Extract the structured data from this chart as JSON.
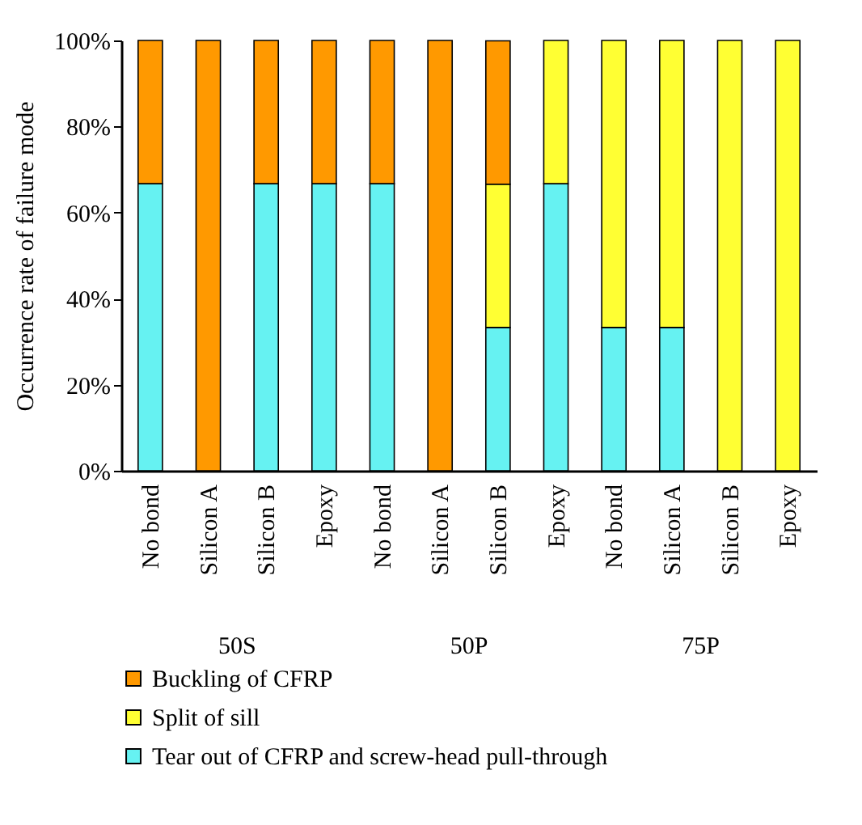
{
  "chart_data": {
    "type": "bar",
    "stacked": true,
    "ylabel": "Occurrence rate of failure mode",
    "categories": [
      "No bond",
      "Silicon A",
      "Silicon B",
      "Epoxy",
      "No bond",
      "Silicon A",
      "Silicon B",
      "Epoxy",
      "No bond",
      "Silicon A",
      "Silicon B",
      "Epoxy"
    ],
    "series": [
      {
        "name": "Tear out of CFRP and screw-head pull-through",
        "color": "#66f2f2",
        "values": [
          66.7,
          0,
          66.7,
          66.7,
          66.7,
          0,
          33.3,
          66.7,
          33.3,
          33.3,
          0,
          0
        ]
      },
      {
        "name": "Split of sill",
        "color": "#ffff33",
        "values": [
          0,
          0,
          0,
          0,
          0,
          0,
          33.3,
          33.3,
          66.7,
          66.7,
          100,
          100
        ]
      },
      {
        "name": "Buckling of CFRP",
        "color": "#ff9900",
        "values": [
          33.3,
          100,
          33.3,
          33.3,
          33.3,
          100,
          33.3,
          0,
          0,
          0,
          0,
          0
        ]
      }
    ],
    "ylim": [
      0,
      100
    ],
    "yticks": [
      {
        "value": 0,
        "label": "0%"
      },
      {
        "value": 20,
        "label": "20%"
      },
      {
        "value": 40,
        "label": "40%"
      },
      {
        "value": 60,
        "label": "60%"
      },
      {
        "value": 80,
        "label": "80%"
      },
      {
        "value": 100,
        "label": "100%"
      }
    ],
    "annotations": [
      "50S",
      "50P",
      "75P"
    ],
    "legend": "bottom",
    "grid": false
  }
}
